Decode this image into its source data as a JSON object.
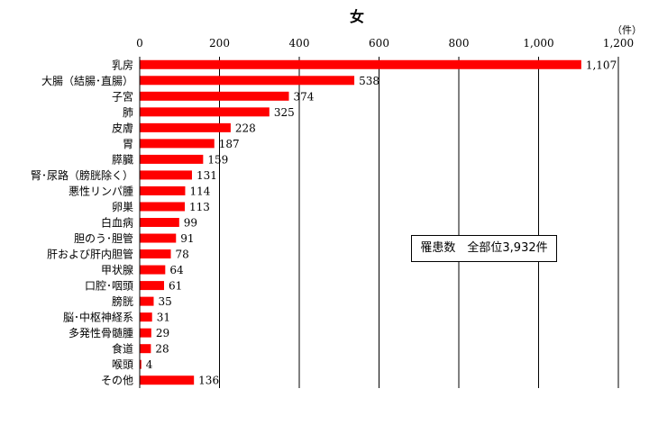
{
  "chart_data": {
    "type": "bar",
    "orientation": "horizontal",
    "title": "女",
    "unit": "（件）",
    "xlim": [
      0,
      1200
    ],
    "ticks": [
      0,
      200,
      400,
      600,
      800,
      1000,
      1200
    ],
    "tick_labels": [
      "0",
      "200",
      "400",
      "600",
      "800",
      "1,000",
      "1,200"
    ],
    "grid": true,
    "categories": [
      "乳房",
      "大腸（結腸･直腸）",
      "子宮",
      "肺",
      "皮膚",
      "胃",
      "膵臓",
      "腎･尿路（膀胱除く）",
      "悪性リンパ腫",
      "卵巣",
      "白血病",
      "胆のう･胆管",
      "肝および肝内胆管",
      "甲状腺",
      "口腔･咽頭",
      "膀胱",
      "脳･中枢神経系",
      "多発性骨髄腫",
      "食道",
      "喉頭",
      "その他"
    ],
    "values": [
      1107,
      538,
      374,
      325,
      228,
      187,
      159,
      131,
      114,
      113,
      99,
      91,
      78,
      64,
      61,
      35,
      31,
      29,
      28,
      4,
      136
    ],
    "value_labels": [
      "1,107",
      "538",
      "374",
      "325",
      "228",
      "187",
      "159",
      "131",
      "114",
      "113",
      "99",
      "91",
      "78",
      "64",
      "61",
      "35",
      "31",
      "29",
      "28",
      "4",
      "136"
    ],
    "bar_color": "#ff0000",
    "annotation": "罹患数　全部位3,932件"
  }
}
